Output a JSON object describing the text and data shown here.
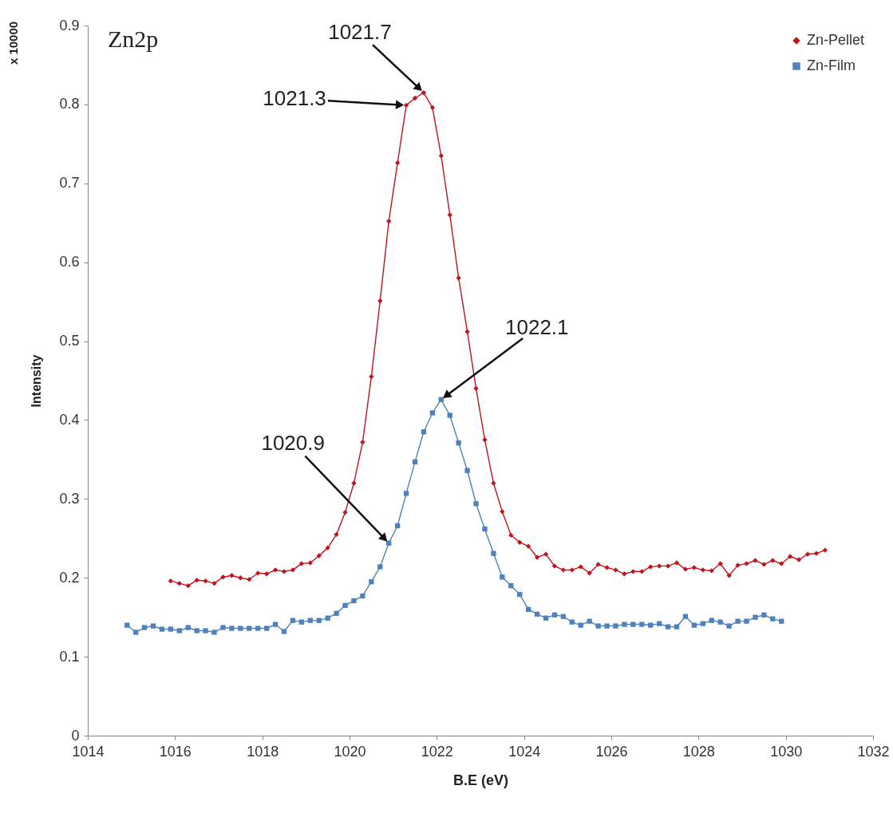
{
  "chart_data": {
    "type": "line",
    "xlabel": "B.E (eV)",
    "ylabel": "Intensity",
    "xlim": [
      1014,
      1032
    ],
    "xticks": [
      1014,
      1016,
      1018,
      1020,
      1022,
      1024,
      1026,
      1028,
      1030,
      1032
    ],
    "ylim": [
      0,
      0.9
    ],
    "yticks": [
      0,
      0.1,
      0.2,
      0.3,
      0.4,
      0.5,
      0.6,
      0.7,
      0.8,
      0.9
    ],
    "grid": false,
    "legend": "top right",
    "series": [
      {
        "name": "Zn-Pellet",
        "color": "#c0141c",
        "marker": "diamond",
        "x": [
          1015.9,
          1016.1,
          1016.3,
          1016.5,
          1016.7,
          1016.9,
          1017.1,
          1017.3,
          1017.5,
          1017.7,
          1017.9,
          1018.1,
          1018.3,
          1018.5,
          1018.7,
          1018.9,
          1019.1,
          1019.3,
          1019.5,
          1019.7,
          1019.9,
          1020.1,
          1020.3,
          1020.5,
          1020.7,
          1020.9,
          1021.1,
          1021.3,
          1021.5,
          1021.7,
          1021.9,
          1022.1,
          1022.3,
          1022.5,
          1022.7,
          1022.9,
          1023.1,
          1023.3,
          1023.5,
          1023.7,
          1023.9,
          1024.1,
          1024.3,
          1024.5,
          1024.7,
          1024.9,
          1025.1,
          1025.3,
          1025.5,
          1025.7,
          1025.9,
          1026.1,
          1026.3,
          1026.5,
          1026.7,
          1026.9,
          1027.1,
          1027.3,
          1027.5,
          1027.7,
          1027.9,
          1028.1,
          1028.3,
          1028.5,
          1028.7,
          1028.9,
          1029.1,
          1029.3,
          1029.5,
          1029.7,
          1029.9,
          1030.1,
          1030.3,
          1030.5,
          1030.7,
          1030.9
        ],
        "values": [
          0.196,
          0.193,
          0.19,
          0.197,
          0.196,
          0.193,
          0.201,
          0.203,
          0.2,
          0.198,
          0.206,
          0.205,
          0.21,
          0.208,
          0.21,
          0.218,
          0.219,
          0.228,
          0.238,
          0.255,
          0.283,
          0.32,
          0.372,
          0.455,
          0.551,
          0.652,
          0.726,
          0.799,
          0.808,
          0.815,
          0.796,
          0.735,
          0.66,
          0.58,
          0.512,
          0.44,
          0.375,
          0.32,
          0.284,
          0.254,
          0.245,
          0.24,
          0.226,
          0.23,
          0.215,
          0.21,
          0.21,
          0.214,
          0.206,
          0.217,
          0.213,
          0.21,
          0.205,
          0.208,
          0.208,
          0.214,
          0.215,
          0.215,
          0.219,
          0.211,
          0.213,
          0.21,
          0.209,
          0.218,
          0.203,
          0.216,
          0.218,
          0.222,
          0.217,
          0.222,
          0.218,
          0.227,
          0.223,
          0.23,
          0.231,
          0.235
        ]
      },
      {
        "name": "Zn-Film",
        "color": "#4f81bd",
        "marker": "square",
        "x": [
          1014.9,
          1015.1,
          1015.3,
          1015.5,
          1015.7,
          1015.9,
          1016.1,
          1016.3,
          1016.5,
          1016.7,
          1016.9,
          1017.1,
          1017.3,
          1017.5,
          1017.7,
          1017.9,
          1018.1,
          1018.3,
          1018.5,
          1018.7,
          1018.9,
          1019.1,
          1019.3,
          1019.5,
          1019.7,
          1019.9,
          1020.1,
          1020.3,
          1020.5,
          1020.7,
          1020.9,
          1021.1,
          1021.3,
          1021.5,
          1021.7,
          1021.9,
          1022.1,
          1022.3,
          1022.5,
          1022.7,
          1022.9,
          1023.1,
          1023.3,
          1023.5,
          1023.7,
          1023.9,
          1024.1,
          1024.3,
          1024.5,
          1024.7,
          1024.9,
          1025.1,
          1025.3,
          1025.5,
          1025.7,
          1025.9,
          1026.1,
          1026.3,
          1026.5,
          1026.7,
          1026.9,
          1027.1,
          1027.3,
          1027.5,
          1027.7,
          1027.9,
          1028.1,
          1028.3,
          1028.5,
          1028.7,
          1028.9,
          1029.1,
          1029.3,
          1029.5,
          1029.7,
          1029.9
        ],
        "values": [
          0.14,
          0.131,
          0.137,
          0.139,
          0.135,
          0.135,
          0.133,
          0.137,
          0.133,
          0.133,
          0.131,
          0.137,
          0.136,
          0.136,
          0.136,
          0.136,
          0.136,
          0.141,
          0.132,
          0.146,
          0.144,
          0.146,
          0.146,
          0.149,
          0.155,
          0.165,
          0.171,
          0.177,
          0.195,
          0.214,
          0.244,
          0.266,
          0.307,
          0.347,
          0.385,
          0.409,
          0.426,
          0.406,
          0.371,
          0.336,
          0.294,
          0.262,
          0.231,
          0.201,
          0.19,
          0.179,
          0.16,
          0.154,
          0.149,
          0.153,
          0.151,
          0.144,
          0.14,
          0.145,
          0.139,
          0.139,
          0.139,
          0.141,
          0.141,
          0.141,
          0.14,
          0.142,
          0.138,
          0.138,
          0.151,
          0.14,
          0.142,
          0.146,
          0.144,
          0.139,
          0.145,
          0.145,
          0.15,
          0.153,
          0.148,
          0.145
        ]
      }
    ],
    "annotations": [
      "x 10000",
      "Zn2p",
      {
        "text": "1021.7",
        "x": 1021.7,
        "y": 0.815
      },
      {
        "text": "1021.3",
        "x": 1021.3,
        "y": 0.799
      },
      {
        "text": "1022.1",
        "x": 1022.1,
        "y": 0.426
      },
      {
        "text": "1020.9",
        "x": 1020.9,
        "y": 0.244
      }
    ]
  }
}
